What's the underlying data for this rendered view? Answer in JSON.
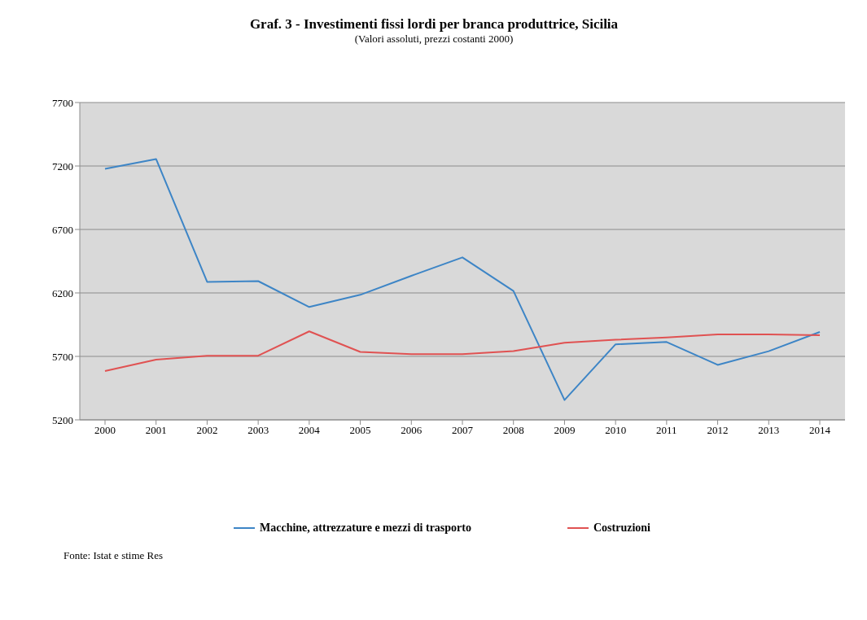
{
  "chart_data": {
    "type": "line",
    "title": "Graf. 3 - Investimenti fissi lordi per branca produttrice, Sicilia",
    "subtitle": "(Valori assoluti, prezzi costanti 2000)",
    "categories": [
      "2000",
      "2001",
      "2002",
      "2003",
      "2004",
      "2005",
      "2006",
      "2007",
      "2008",
      "2009",
      "2010",
      "2011",
      "2012",
      "2013",
      "2014"
    ],
    "series": [
      {
        "name": "Macchine, attrezzature e mezzi di trasporto",
        "color": "#3d85c6",
        "values": [
          7177,
          7255,
          6287,
          6293,
          6089,
          6185,
          6335,
          6480,
          6215,
          5356,
          5795,
          5813,
          5633,
          5741,
          5892
        ]
      },
      {
        "name": "Costruzioni",
        "color": "#e05252",
        "values": [
          5585,
          5675,
          5705,
          5705,
          5897,
          5735,
          5717,
          5717,
          5741,
          5807,
          5831,
          5849,
          5873,
          5873,
          5867
        ]
      }
    ],
    "ylim": [
      5200,
      7700
    ],
    "yticks": [
      5200,
      5700,
      6200,
      6700,
      7200,
      7700
    ],
    "grid": "y",
    "legend": "bottom",
    "marker": "none",
    "line_style": "solid",
    "annotations": [
      "Fonte: Istat e stime Res"
    ]
  }
}
